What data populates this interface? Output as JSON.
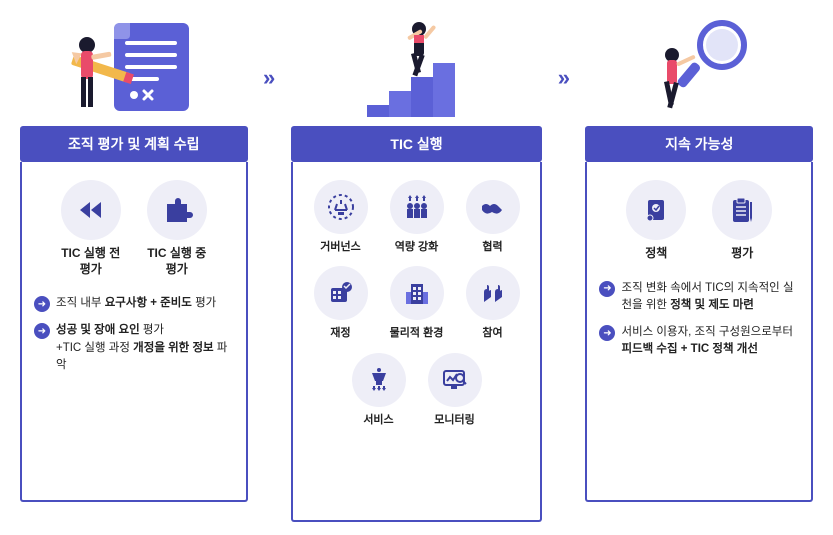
{
  "colors": {
    "primary": "#4a4fbf",
    "iconBg": "#eeeef7",
    "text": "#222222",
    "accent": "#e94b6a",
    "skin": "#f5c9a3",
    "dark": "#1a1a2e"
  },
  "arrows": {
    "glyph": "»"
  },
  "columns": [
    {
      "title": "조직 평가 및 계획 수립",
      "icons": [
        {
          "name": "rewind-icon",
          "label": "TIC 실행 전 평가"
        },
        {
          "name": "puzzle-icon",
          "label": "TIC 실행 중 평가"
        }
      ],
      "bullets": [
        {
          "html": "조직 내부 <b>요구사항 + 준비도</b> 평가"
        },
        {
          "html": "<b>성공 및 장애 요인</b> 평가<br>+TIC 실행 과정 <b>개정을 위한 정보</b> 파악"
        }
      ]
    },
    {
      "title": "TIC 실행",
      "icons": [
        {
          "name": "governance-icon",
          "label": "거버넌스"
        },
        {
          "name": "capacity-icon",
          "label": "역량 강화"
        },
        {
          "name": "cooperation-icon",
          "label": "협력"
        },
        {
          "name": "finance-icon",
          "label": "재정"
        },
        {
          "name": "environment-icon",
          "label": "물리적 환경"
        },
        {
          "name": "participation-icon",
          "label": "참여"
        },
        {
          "name": "service-icon",
          "label": "서비스"
        },
        {
          "name": "monitoring-icon",
          "label": "모니터링"
        }
      ]
    },
    {
      "title": "지속 가능성",
      "icons": [
        {
          "name": "policy-icon",
          "label": "정책"
        },
        {
          "name": "evaluation-icon",
          "label": "평가"
        }
      ],
      "bullets": [
        {
          "html": "조직 변화 속에서 TIC의 지속적인 실천을 위한 <b>정책 및 제도 마련</b>"
        },
        {
          "html": "서비스 이용자, 조직 구성원으로부터 <b>피드백 수집 + TIC 정책 개선</b>"
        }
      ]
    }
  ]
}
